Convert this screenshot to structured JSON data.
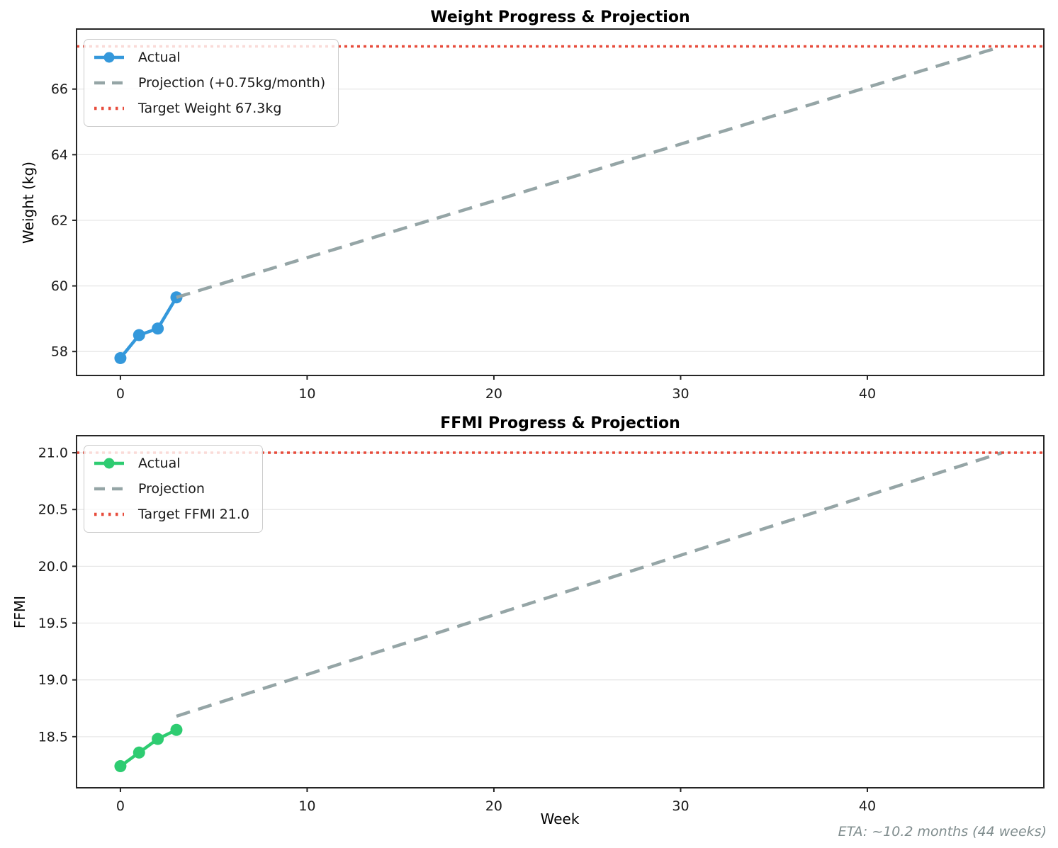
{
  "page": {
    "eta_note": "ETA: ~10.2 months (44 weeks)",
    "background_color": "#ffffff",
    "muted_text_color": "#7f8c8d"
  },
  "colors": {
    "actual_weight": "#3498db",
    "actual_ffmi": "#2ecc71",
    "projection": "#95a5a6",
    "target": "#e74c3c"
  },
  "chart_data": [
    {
      "type": "line",
      "title": "Weight Progress & Projection",
      "xlabel": "",
      "ylabel": "Weight (kg)",
      "xlim": [
        -2.35,
        49.45
      ],
      "ylim": [
        57.27,
        67.83
      ],
      "grid": "horizontal",
      "legend_position": "upper-left",
      "xticks": {
        "values": [
          0,
          10,
          20,
          30,
          40
        ],
        "labels": [
          "0",
          "10",
          "20",
          "30",
          "40"
        ]
      },
      "yticks": {
        "values": [
          58,
          60,
          62,
          64,
          66
        ],
        "labels": [
          "58",
          "60",
          "62",
          "64",
          "66"
        ]
      },
      "series": [
        {
          "name": "Actual",
          "style": "solid-marker",
          "color": "#3498db",
          "x": [
            0,
            1,
            2,
            3
          ],
          "y": [
            57.8,
            58.5,
            58.7,
            59.65
          ]
        },
        {
          "name": "Projection (+0.75kg/month)",
          "style": "dashed",
          "color": "#95a5a6",
          "x": [
            3,
            47.2
          ],
          "y": [
            59.65,
            67.3
          ]
        },
        {
          "name": "Target Weight 67.3kg",
          "style": "dotted-h",
          "color": "#e74c3c",
          "value": 67.3
        }
      ],
      "legend": [
        {
          "label": "Actual",
          "swatch": "line-marker",
          "color": "#3498db"
        },
        {
          "label": "Projection (+0.75kg/month)",
          "swatch": "dashed",
          "color": "#95a5a6"
        },
        {
          "label": "Target Weight 67.3kg",
          "swatch": "dotted",
          "color": "#e74c3c"
        }
      ]
    },
    {
      "type": "line",
      "title": "FFMI Progress & Projection",
      "xlabel": "Week",
      "ylabel": "FFMI",
      "xlim": [
        -2.35,
        49.45
      ],
      "ylim": [
        18.05,
        21.15
      ],
      "grid": "horizontal",
      "legend_position": "upper-left",
      "xticks": {
        "values": [
          0,
          10,
          20,
          30,
          40
        ],
        "labels": [
          "0",
          "10",
          "20",
          "30",
          "40"
        ]
      },
      "yticks": {
        "values": [
          18.5,
          19.0,
          19.5,
          20.0,
          20.5,
          21.0
        ],
        "labels": [
          "18.5",
          "19.0",
          "19.5",
          "20.0",
          "20.5",
          "21.0"
        ]
      },
      "series": [
        {
          "name": "Actual",
          "style": "solid-marker",
          "color": "#2ecc71",
          "x": [
            0,
            1,
            2,
            3
          ],
          "y": [
            18.24,
            18.36,
            18.48,
            18.56
          ]
        },
        {
          "name": "Projection",
          "style": "dashed",
          "color": "#95a5a6",
          "x": [
            3,
            47.2
          ],
          "y": [
            18.68,
            21.0
          ]
        },
        {
          "name": "Target FFMI 21.0",
          "style": "dotted-h",
          "color": "#e74c3c",
          "value": 21.0
        }
      ],
      "legend": [
        {
          "label": "Actual",
          "swatch": "line-marker",
          "color": "#2ecc71"
        },
        {
          "label": "Projection",
          "swatch": "dashed",
          "color": "#95a5a6"
        },
        {
          "label": "Target FFMI 21.0",
          "swatch": "dotted",
          "color": "#e74c3c"
        }
      ]
    }
  ]
}
